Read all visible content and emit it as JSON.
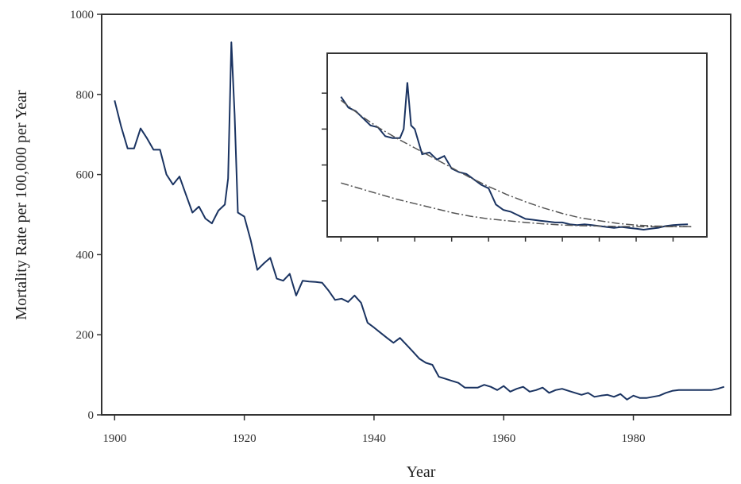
{
  "chart_data": [
    {
      "type": "line",
      "title": "",
      "xlabel": "Year",
      "ylabel": "Mortality Rate per 100,000 per Year",
      "xlim": [
        1898,
        1995
      ],
      "ylim": [
        0,
        1000
      ],
      "x_ticks": [
        1900,
        1920,
        1940,
        1960,
        1980
      ],
      "x_tick_labels": [
        "1900",
        "1920",
        "1940",
        "1960",
        "1980"
      ],
      "y_ticks": [
        0,
        200,
        400,
        600,
        800,
        1000
      ],
      "y_tick_labels": [
        "0",
        "200",
        "400",
        "600",
        "800",
        "1000"
      ],
      "grid": false,
      "colors": {
        "series": "#1a3361",
        "axis": "#333333"
      },
      "series": [
        {
          "x": [
            1900,
            1901,
            1902,
            1903,
            1904,
            1905,
            1906,
            1907,
            1908,
            1909,
            1910,
            1911,
            1912,
            1913,
            1914,
            1915,
            1916,
            1917,
            1917.5,
            1918,
            1918.5,
            1919,
            1920,
            1921,
            1922,
            1923,
            1924,
            1925,
            1926,
            1927,
            1928,
            1929,
            1930,
            1931,
            1932,
            1933,
            1934,
            1935,
            1936,
            1937,
            1938,
            1939,
            1940,
            1941,
            1942,
            1943,
            1944,
            1945,
            1946,
            1947,
            1948,
            1949,
            1950,
            1951,
            1952,
            1953,
            1954,
            1955,
            1956,
            1957,
            1958,
            1959,
            1960,
            1961,
            1962,
            1963,
            1964,
            1965,
            1966,
            1967,
            1968,
            1969,
            1970,
            1971,
            1972,
            1973,
            1974,
            1975,
            1976,
            1977,
            1978,
            1979,
            1980,
            1981,
            1982,
            1983,
            1984,
            1985,
            1986,
            1987,
            1988,
            1989,
            1990,
            1991,
            1992,
            1993,
            1994
          ],
          "values": [
            785,
            720,
            665,
            665,
            715,
            690,
            662,
            662,
            600,
            575,
            595,
            550,
            505,
            520,
            490,
            478,
            510,
            525,
            590,
            930,
            750,
            505,
            495,
            435,
            362,
            378,
            392,
            340,
            335,
            352,
            298,
            335,
            333,
            332,
            330,
            310,
            287,
            290,
            282,
            298,
            280,
            230,
            218,
            205,
            192,
            180,
            192,
            175,
            158,
            140,
            130,
            125,
            95,
            90,
            85,
            80,
            68,
            68,
            68,
            75,
            70,
            62,
            72,
            58,
            65,
            70,
            58,
            62,
            68,
            55,
            62,
            65,
            60,
            55,
            50,
            55,
            45,
            48,
            50,
            45,
            52,
            38,
            48,
            42,
            42,
            45,
            48,
            55,
            60,
            62,
            62,
            62,
            62,
            62,
            62,
            65,
            70
          ]
        }
      ]
    },
    {
      "type": "line",
      "title": "",
      "xlabel": "",
      "ylabel": "",
      "xlim": [
        1898,
        1997
      ],
      "ylim": [
        0,
        1000
      ],
      "x_tick_labels": [],
      "y_tick_labels": [],
      "colors": {
        "series": "#1a3361",
        "trend": "#555555"
      },
      "series": [
        {
          "style": "solid",
          "x": [
            1900,
            1902,
            1904,
            1906,
            1908,
            1910,
            1912,
            1914,
            1916,
            1917,
            1918,
            1919,
            1920,
            1922,
            1924,
            1926,
            1928,
            1930,
            1932,
            1934,
            1936,
            1938,
            1940,
            1942,
            1944,
            1946,
            1948,
            1950,
            1952,
            1954,
            1956,
            1958,
            1960,
            1962,
            1964,
            1966,
            1968,
            1970,
            1972,
            1974,
            1976,
            1978,
            1980,
            1982,
            1984,
            1986,
            1988,
            1990,
            1992,
            1994
          ],
          "values": [
            780,
            720,
            700,
            660,
            620,
            610,
            560,
            550,
            550,
            600,
            860,
            620,
            600,
            460,
            470,
            430,
            450,
            380,
            360,
            350,
            320,
            290,
            270,
            180,
            150,
            140,
            120,
            100,
            95,
            90,
            85,
            80,
            80,
            70,
            65,
            70,
            65,
            60,
            55,
            50,
            55,
            50,
            45,
            40,
            45,
            50,
            60,
            65,
            68,
            70
          ]
        },
        {
          "style": "dash-dot",
          "x": [
            1900,
            1905,
            1910,
            1915,
            1920,
            1925,
            1930,
            1935,
            1940,
            1945,
            1950,
            1955,
            1960,
            1965,
            1970,
            1975,
            1980,
            1985,
            1990,
            1995
          ],
          "values": [
            760,
            680,
            610,
            550,
            495,
            440,
            385,
            330,
            280,
            235,
            195,
            160,
            130,
            105,
            90,
            75,
            65,
            60,
            58,
            57
          ]
        },
        {
          "style": "dash-dot",
          "x": [
            1900,
            1905,
            1910,
            1915,
            1920,
            1925,
            1930,
            1935,
            1940,
            1945,
            1950,
            1955,
            1960,
            1965,
            1970,
            1975,
            1980,
            1985,
            1990,
            1995
          ],
          "values": [
            300,
            270,
            240,
            210,
            185,
            160,
            135,
            115,
            100,
            90,
            80,
            72,
            66,
            62,
            60,
            58,
            57,
            56,
            56,
            56
          ]
        }
      ]
    }
  ]
}
